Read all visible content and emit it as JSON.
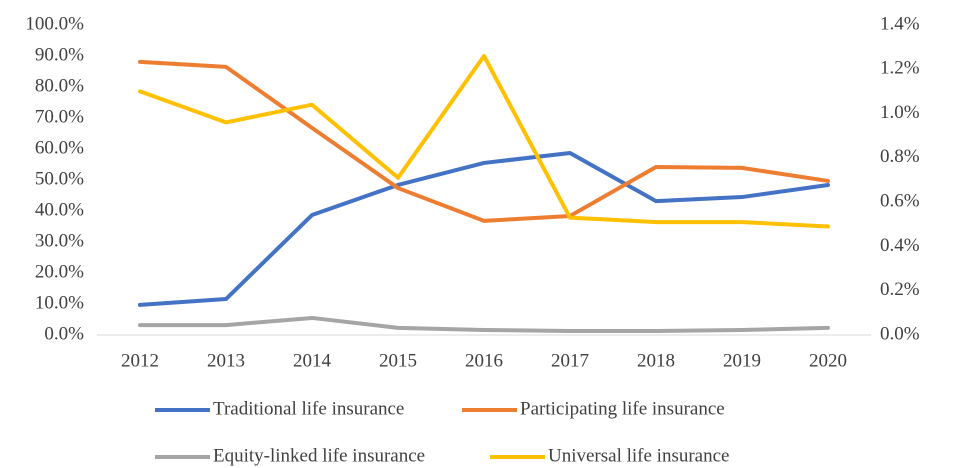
{
  "chart_data": {
    "type": "line",
    "categories": [
      "2012",
      "2013",
      "2014",
      "2015",
      "2016",
      "2017",
      "2018",
      "2019",
      "2020"
    ],
    "series": [
      {
        "name": "Traditional life insurance",
        "color": "#4472c4",
        "values": [
          9.7,
          11.6,
          38.7,
          48.4,
          55.5,
          58.7,
          43.2,
          44.5,
          48.4
        ]
      },
      {
        "name": "Participating life insurance",
        "color": "#ed7d31",
        "values": [
          88.1,
          86.5,
          66.8,
          47.4,
          36.8,
          38.4,
          54.2,
          53.9,
          49.7
        ]
      },
      {
        "name": "Equity-linked life insurance",
        "color": "#a5a5a5",
        "values": [
          3.2,
          3.2,
          5.5,
          2.3,
          1.6,
          1.3,
          1.3,
          1.6,
          2.3
        ]
      },
      {
        "name": "Universal life insurance",
        "color": "#ffc000",
        "axis": "y2",
        "values": [
          1.1,
          0.96,
          1.04,
          0.71,
          1.26,
          0.53,
          0.51,
          0.51,
          0.49
        ]
      }
    ],
    "ylim": [
      0,
      100
    ],
    "yticks": [
      {
        "value": 0,
        "label": "0.0%"
      },
      {
        "value": 10,
        "label": "10.0%"
      },
      {
        "value": 20,
        "label": "20.0%"
      },
      {
        "value": 30,
        "label": "30.0%"
      },
      {
        "value": 40,
        "label": "40.0%"
      },
      {
        "value": 50,
        "label": "50.0%"
      },
      {
        "value": 60,
        "label": "60.0%"
      },
      {
        "value": 70,
        "label": "70.0%"
      },
      {
        "value": 80,
        "label": "80.0%"
      },
      {
        "value": 90,
        "label": "90.0%"
      },
      {
        "value": 100,
        "label": "100.0%"
      }
    ],
    "y2lim": [
      0,
      1.4
    ],
    "y2ticks": [
      {
        "value": 0,
        "label": "0.0%"
      },
      {
        "value": 0.2,
        "label": "0.2%"
      },
      {
        "value": 0.4,
        "label": "0.4%"
      },
      {
        "value": 0.6,
        "label": "0.6%"
      },
      {
        "value": 0.8,
        "label": "0.8%"
      },
      {
        "value": 1.0,
        "label": "1.0%"
      },
      {
        "value": 1.2,
        "label": "1.2%"
      },
      {
        "value": 1.4,
        "label": "1.4%"
      }
    ],
    "legend": "bottom"
  }
}
